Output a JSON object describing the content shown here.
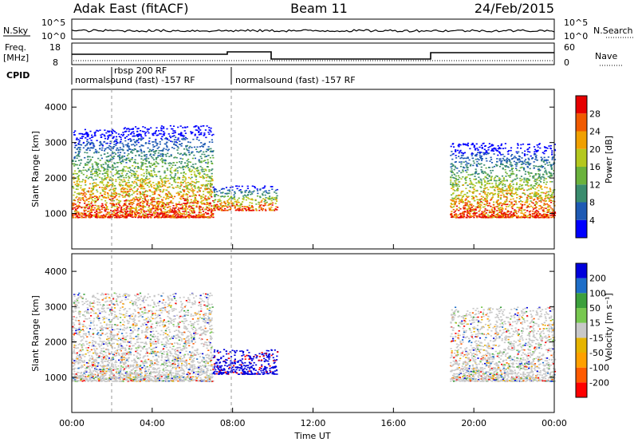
{
  "header": {
    "radar": "Adak East (fitACF)",
    "beam": "Beam 11",
    "date": "24/Feb/2015"
  },
  "summary": {
    "nsky_label": "N.Sky",
    "nsearch_label": "N.Search",
    "freq_label": "Freq.",
    "freq_unit": "[MHz]",
    "nave_label": "Nave",
    "cpid_label": "CPID",
    "nsky_ticks": [
      "10^5",
      "10^0"
    ],
    "freq_ticks": [
      "18",
      "8"
    ],
    "nave_ticks": [
      "60",
      "0"
    ],
    "cpid_segments": [
      {
        "text": "normalsound (fast) -157 RF"
      },
      {
        "text": "rbsp 200 RF"
      },
      {
        "text": "normalsound (fast) -157 RF"
      }
    ]
  },
  "chart_data": [
    {
      "type": "heatmap",
      "panel": "power",
      "ylabel": "Slant Range [km]",
      "xlabel": "Time UT",
      "ylim": [
        0,
        4500
      ],
      "xlim_hours": [
        0,
        24
      ],
      "yticks": [
        "1000",
        "2000",
        "3000",
        "4000"
      ],
      "xticks": [
        "00:00",
        "04:00",
        "08:00",
        "12:00",
        "16:00",
        "20:00",
        "00:00"
      ],
      "colorbar_label": "Power [dB]",
      "colorbar_ticks": [
        "28",
        "24",
        "20",
        "16",
        "12",
        "8",
        "4"
      ],
      "colors": [
        "#0000ff",
        "#1e5ab4",
        "#3a8c6e",
        "#6ab23c",
        "#b4c81e",
        "#f0a000",
        "#f05a00",
        "#e60000"
      ],
      "echo_regions": [
        {
          "t_start_h": 0.0,
          "t_end_h": 2.5,
          "range_km": [
            900,
            3400
          ]
        },
        {
          "t_start_h": 2.5,
          "t_end_h": 7.0,
          "range_km": [
            900,
            3500
          ]
        },
        {
          "t_start_h": 7.0,
          "t_end_h": 10.2,
          "range_km": [
            1100,
            1800
          ]
        },
        {
          "t_start_h": 18.8,
          "t_end_h": 24.0,
          "range_km": [
            900,
            3000
          ]
        }
      ]
    },
    {
      "type": "heatmap",
      "panel": "velocity",
      "ylabel": "Slant Range [km]",
      "xlabel": "Time UT",
      "ylim": [
        0,
        4500
      ],
      "xlim_hours": [
        0,
        24
      ],
      "yticks": [
        "1000",
        "2000",
        "3000",
        "4000"
      ],
      "xticks": [
        "00:00",
        "04:00",
        "08:00",
        "12:00",
        "16:00",
        "20:00",
        "00:00"
      ],
      "colorbar_label": "Velocity [m s⁻¹]",
      "colorbar_ticks": [
        "200",
        "100",
        "50",
        "15",
        "-15",
        "-50",
        "-100",
        "-200"
      ],
      "colors": [
        "#ff0000",
        "#ff5a00",
        "#ffa000",
        "#e6b400",
        "#c8c8c8",
        "#78c850",
        "#3ca03c",
        "#1e6ec8",
        "#0000dc"
      ],
      "echo_regions": [
        {
          "t_start_h": 0.0,
          "t_end_h": 7.0,
          "range_km": [
            900,
            3400
          ]
        },
        {
          "t_start_h": 7.0,
          "t_end_h": 10.2,
          "range_km": [
            1100,
            1800
          ]
        },
        {
          "t_start_h": 18.8,
          "t_end_h": 24.0,
          "range_km": [
            900,
            3000
          ]
        }
      ]
    }
  ]
}
